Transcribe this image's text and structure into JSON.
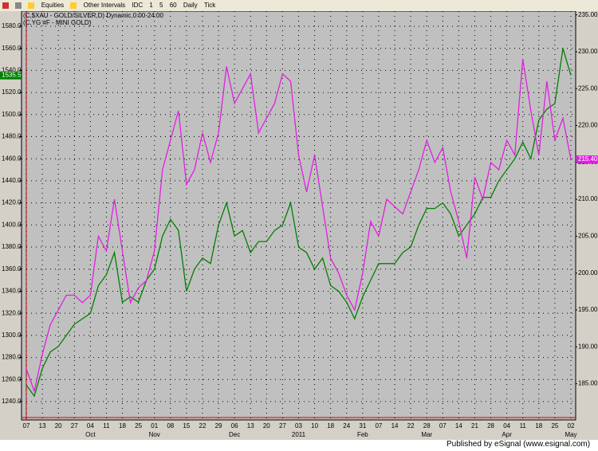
{
  "toolbar": {
    "items": [
      "Equities",
      "Other Intervals",
      "IDC",
      "1",
      "5",
      "60",
      "Daily",
      "Tick"
    ]
  },
  "footer": "Published by eSignal (www.esignal.com)",
  "chart_data": {
    "type": "line",
    "title": "(C,$XAU - GOLD/SILVER,D) Dynamic,0:00-24:00",
    "subtitle": "(C,YG #F - MINI GOLD)",
    "categories": [
      "07",
      null,
      "13",
      null,
      "20",
      null,
      "27",
      null,
      "04",
      null,
      "11",
      null,
      "18",
      null,
      "25",
      null,
      "01",
      null,
      "08",
      null,
      "15",
      null,
      "22",
      null,
      "29",
      null,
      "06",
      null,
      "13",
      null,
      "20",
      null,
      "27",
      null,
      "03",
      null,
      "10",
      null,
      "18",
      null,
      "24",
      null,
      "31",
      null,
      "07",
      null,
      "14",
      null,
      "22",
      null,
      "28",
      null,
      "07",
      null,
      "14",
      null,
      "21",
      null,
      "28",
      null,
      "04",
      null,
      "11",
      null,
      "18",
      null,
      "25",
      null,
      "02"
    ],
    "months": [
      null,
      null,
      null,
      null,
      null,
      null,
      null,
      null,
      "Oct",
      null,
      null,
      null,
      null,
      null,
      null,
      null,
      "Nov",
      null,
      null,
      null,
      null,
      null,
      null,
      null,
      null,
      null,
      "Dec",
      null,
      null,
      null,
      null,
      null,
      null,
      null,
      "2011",
      null,
      null,
      null,
      null,
      null,
      null,
      null,
      "Feb",
      null,
      null,
      null,
      null,
      null,
      null,
      null,
      "Mar",
      null,
      null,
      null,
      null,
      null,
      null,
      null,
      null,
      null,
      "Apr",
      null,
      null,
      null,
      null,
      null,
      null,
      null,
      "May"
    ],
    "series": [
      {
        "name": "(C,YG #F - MINI GOLD)",
        "color": "#008000",
        "axis": "y",
        "values": [
          1255,
          1245,
          1270,
          1285,
          1290,
          1300,
          1310,
          1315,
          1320,
          1345,
          1355,
          1375,
          1330,
          1335,
          1330,
          1350,
          1360,
          1390,
          1405,
          1395,
          1340,
          1360,
          1370,
          1365,
          1400,
          1420,
          1390,
          1395,
          1375,
          1385,
          1385,
          1395,
          1400,
          1420,
          1380,
          1375,
          1360,
          1370,
          1345,
          1340,
          1330,
          1315,
          1335,
          1350,
          1365,
          1365,
          1365,
          1375,
          1380,
          1400,
          1415,
          1415,
          1420,
          1410,
          1390,
          1400,
          1410,
          1425,
          1425,
          1440,
          1450,
          1460,
          1475,
          1460,
          1495,
          1505,
          1510,
          1560,
          1535.5
        ],
        "last_label": 1535.5
      },
      {
        "name": "(C,$XAU - GOLD/SILVER,D)",
        "color": "#e020e0",
        "axis": "y2",
        "values": [
          187,
          184,
          189,
          193,
          195,
          197,
          197,
          196,
          197,
          205,
          203,
          210,
          203,
          196,
          198,
          199,
          203,
          214,
          218,
          222,
          212,
          214,
          219,
          215,
          219,
          228,
          223,
          225,
          227,
          219,
          221,
          223,
          227,
          226,
          216,
          211,
          216,
          209,
          202,
          200,
          197,
          195,
          200,
          207,
          205,
          210,
          209,
          208,
          211,
          214,
          218,
          215,
          217,
          211,
          207,
          202,
          213,
          210,
          215,
          214,
          218,
          216,
          229,
          222,
          216,
          226,
          218,
          221,
          215.4
        ],
        "last_label": {
          "value": 215.4,
          "label": "215.40"
        }
      }
    ],
    "ylim": [
      1223.4,
      1593.7
    ],
    "yticks": [
      {
        "value": 1240,
        "label": "1240.0"
      },
      {
        "value": 1260,
        "label": "1260.0"
      },
      {
        "value": 1280,
        "label": "1280.0"
      },
      {
        "value": 1300,
        "label": "1300.0"
      },
      {
        "value": 1320,
        "label": "1320.0"
      },
      {
        "value": 1340,
        "label": "1340.0"
      },
      {
        "value": 1360,
        "label": "1360.0"
      },
      {
        "value": 1380,
        "label": "1380.0"
      },
      {
        "value": 1400,
        "label": "1400.0"
      },
      {
        "value": 1420,
        "label": "1420.0"
      },
      {
        "value": 1440,
        "label": "1440.0"
      },
      {
        "value": 1460,
        "label": "1460.0"
      },
      {
        "value": 1480,
        "label": "1480.0"
      },
      {
        "value": 1500,
        "label": "1500.0"
      },
      {
        "value": 1520,
        "label": "1520.0"
      },
      {
        "value": 1540,
        "label": "1540.0"
      },
      {
        "value": 1560,
        "label": "1560.0"
      },
      {
        "value": 1580,
        "label": "1580.0"
      }
    ],
    "y2lim": [
      180.1,
      235.5
    ],
    "y2ticks": [
      {
        "value": 185,
        "label": "185.00"
      },
      {
        "value": 190,
        "label": "190.00"
      },
      {
        "value": 195,
        "label": "195.00"
      },
      {
        "value": 200,
        "label": "200.00"
      },
      {
        "value": 205,
        "label": "205.00"
      },
      {
        "value": 210,
        "label": "210.00"
      },
      {
        "value": 215,
        "label": "215.00"
      },
      {
        "value": 220,
        "label": "220.00"
      },
      {
        "value": 225,
        "label": "225.00"
      },
      {
        "value": 230,
        "label": "230.00"
      },
      {
        "value": 235,
        "label": "235.00"
      }
    ],
    "grid": true
  }
}
